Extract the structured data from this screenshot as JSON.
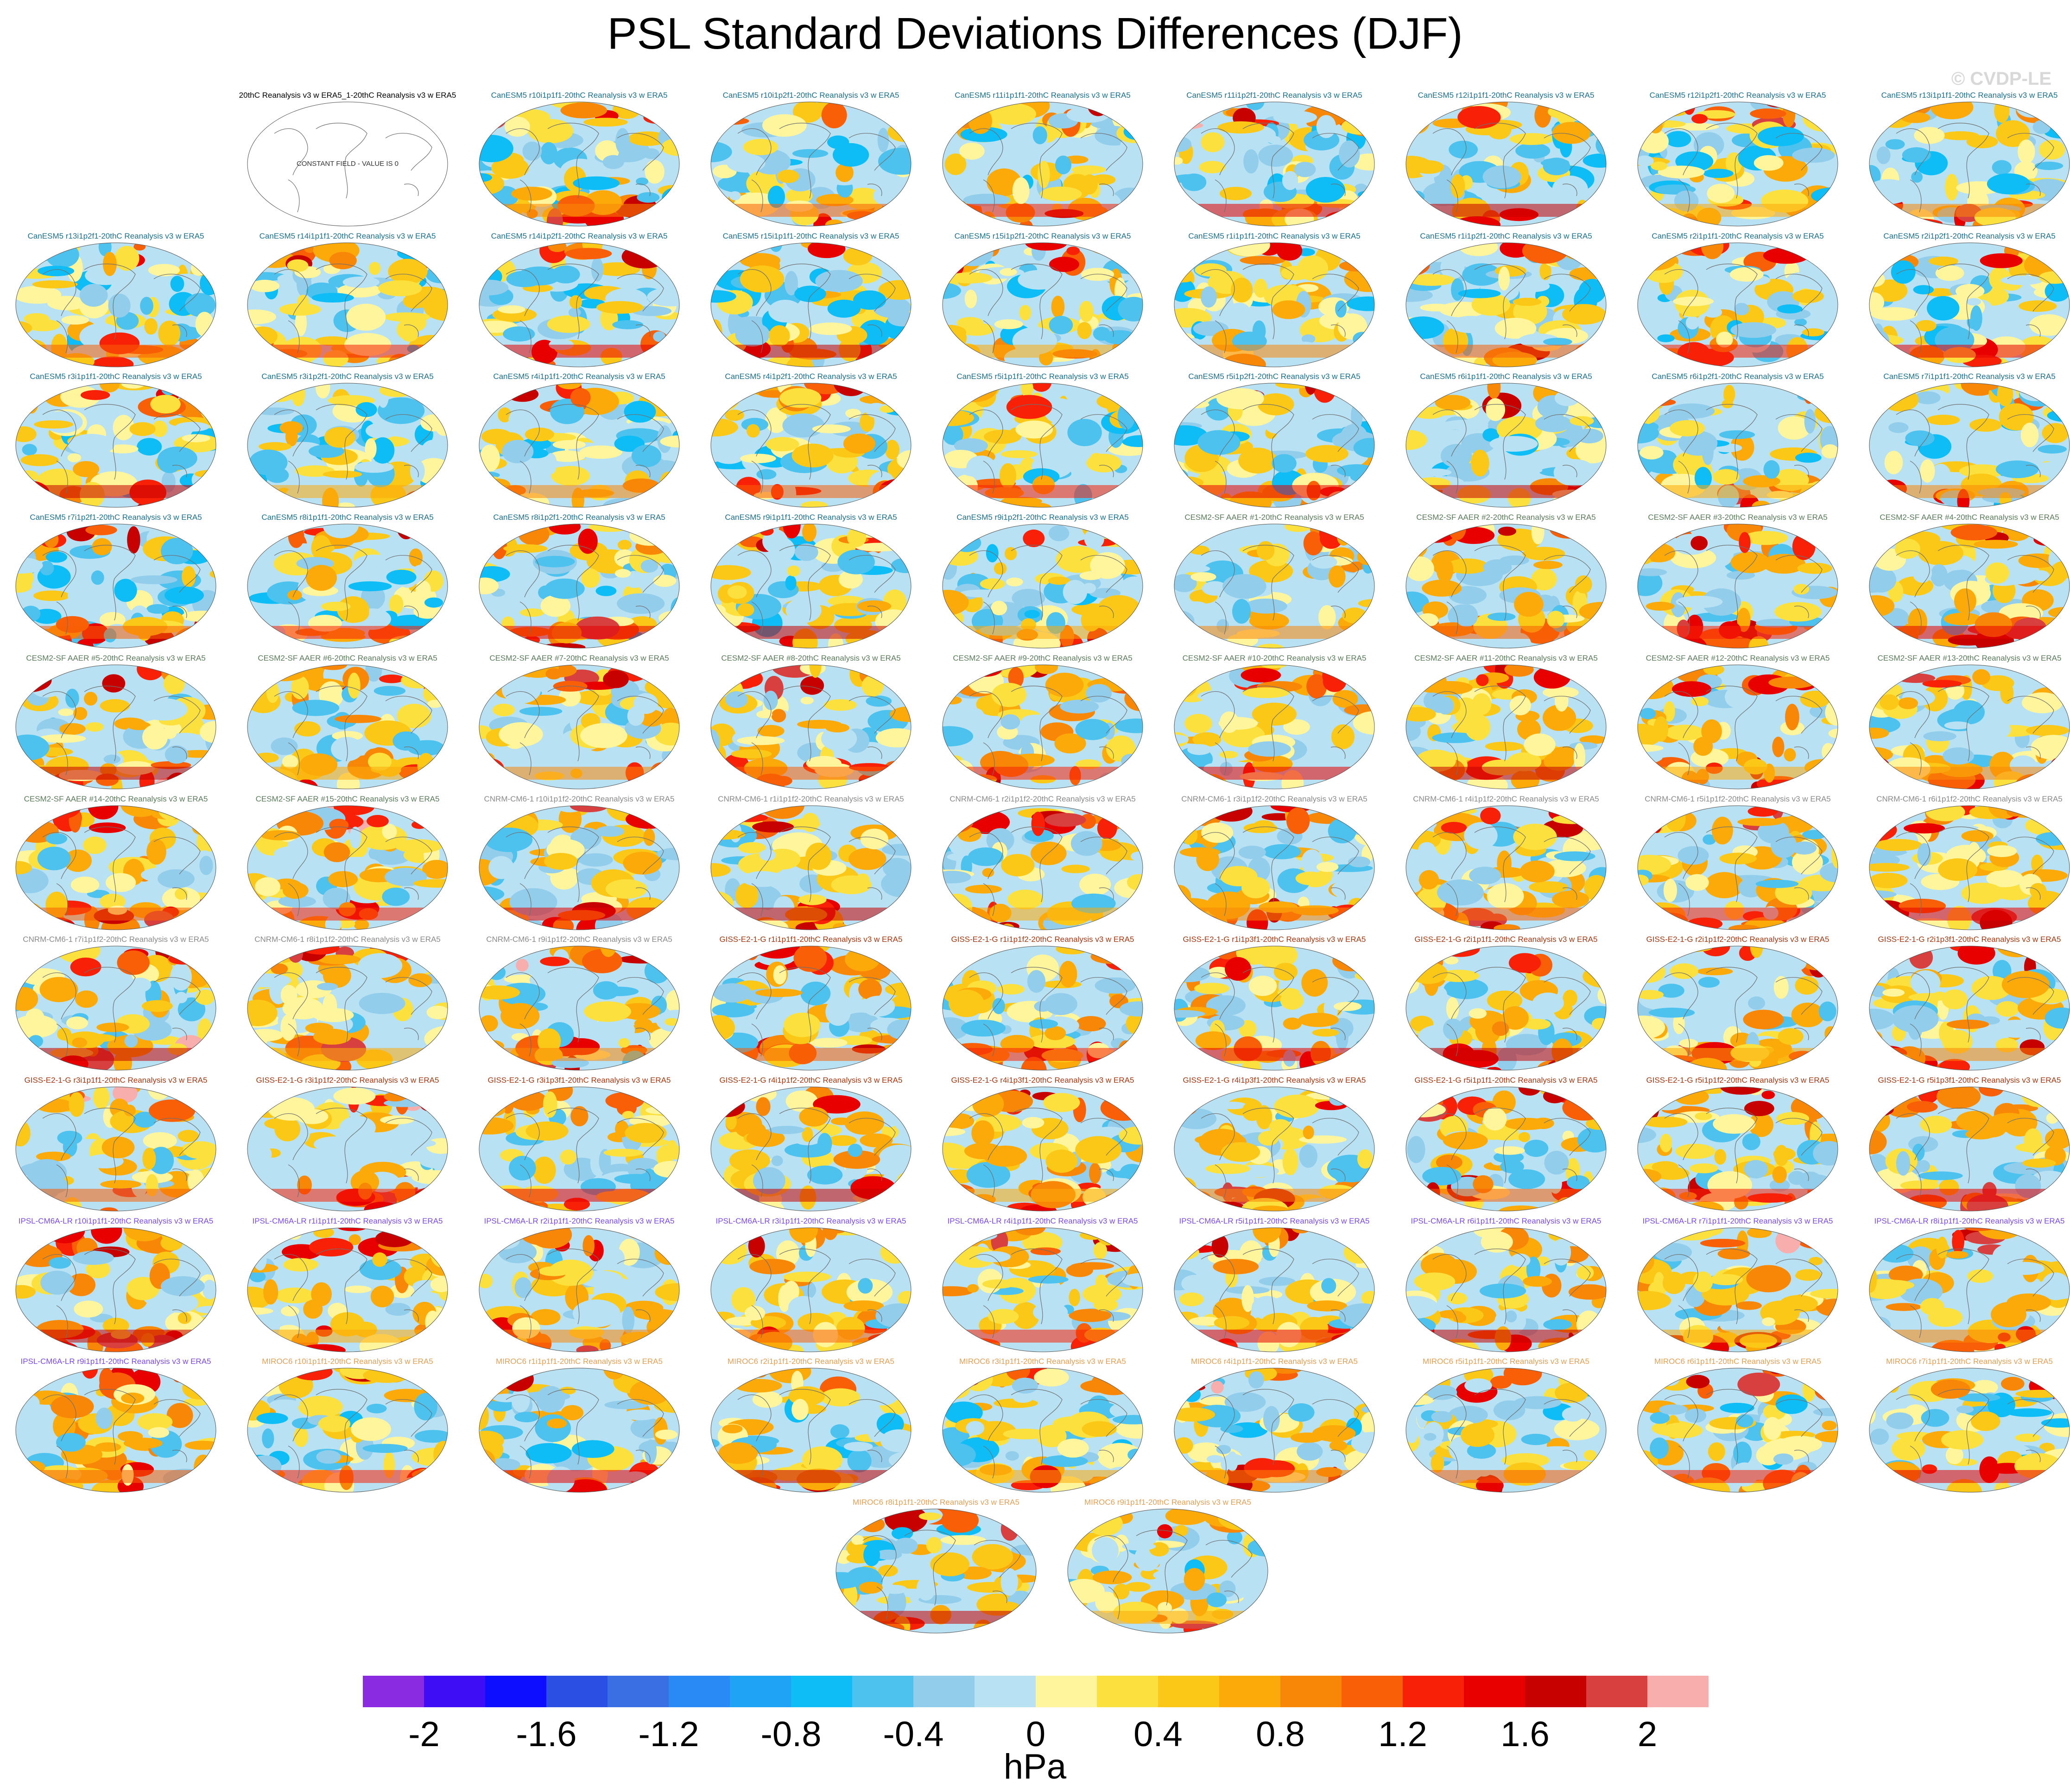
{
  "title": "PSL Standard Deviations Differences (DJF)",
  "watermark": "© CVDP-LE",
  "constant_field_note": "CONSTANT FIELD - VALUE IS 0",
  "units": "hPa",
  "colorbar": {
    "colors": [
      "#8a2be2",
      "#3e0df5",
      "#0d0dff",
      "#2b4fe3",
      "#3a6fe3",
      "#2a8af5",
      "#1fa3f5",
      "#0ebdf6",
      "#4dc2ef",
      "#93cdec",
      "#b8e2f3",
      "#fff59c",
      "#fce13e",
      "#fbc818",
      "#fbaa0a",
      "#f98707",
      "#f85f06",
      "#f82108",
      "#e80000",
      "#c70000",
      "#d84040",
      "#f9aeae"
    ],
    "tick_labels": [
      "-2",
      "-1.6",
      "-1.2",
      "-0.8",
      "-0.4",
      "0",
      "0.4",
      "0.8",
      "1.2",
      "1.6",
      "2"
    ]
  },
  "chart_data": {
    "type": "heatmap",
    "title": "PSL Standard Deviations Differences (DJF)",
    "colorbar_label": "hPa",
    "colorbar_range": [
      -2.2,
      2.2
    ],
    "colorbar_step": 0.2,
    "panels": [
      {
        "label": "20thC Reanalysis v3 w ERA5_1-20thC Reanalysis v3 w ERA5",
        "group": "obs"
      },
      {
        "label": "CanESM5 r10i1p1f1-20thC Reanalysis v3 w ERA5",
        "group": "canesm"
      },
      {
        "label": "CanESM5 r10i1p2f1-20thC Reanalysis v3 w ERA5",
        "group": "canesm"
      },
      {
        "label": "CanESM5 r11i1p1f1-20thC Reanalysis v3 w ERA5",
        "group": "canesm"
      },
      {
        "label": "CanESM5 r11i1p2f1-20thC Reanalysis v3 w ERA5",
        "group": "canesm"
      },
      {
        "label": "CanESM5 r12i1p1f1-20thC Reanalysis v3 w ERA5",
        "group": "canesm"
      },
      {
        "label": "CanESM5 r12i1p2f1-20thC Reanalysis v3 w ERA5",
        "group": "canesm"
      },
      {
        "label": "CanESM5 r13i1p1f1-20thC Reanalysis v3 w ERA5",
        "group": "canesm"
      },
      {
        "label": "CanESM5 r13i1p2f1-20thC Reanalysis v3 w ERA5",
        "group": "canesm"
      },
      {
        "label": "CanESM5 r14i1p1f1-20thC Reanalysis v3 w ERA5",
        "group": "canesm"
      },
      {
        "label": "CanESM5 r14i1p2f1-20thC Reanalysis v3 w ERA5",
        "group": "canesm"
      },
      {
        "label": "CanESM5 r15i1p1f1-20thC Reanalysis v3 w ERA5",
        "group": "canesm"
      },
      {
        "label": "CanESM5 r15i1p2f1-20thC Reanalysis v3 w ERA5",
        "group": "canesm"
      },
      {
        "label": "CanESM5 r1i1p1f1-20thC Reanalysis v3 w ERA5",
        "group": "canesm"
      },
      {
        "label": "CanESM5 r1i1p2f1-20thC Reanalysis v3 w ERA5",
        "group": "canesm"
      },
      {
        "label": "CanESM5 r2i1p1f1-20thC Reanalysis v3 w ERA5",
        "group": "canesm"
      },
      {
        "label": "CanESM5 r2i1p2f1-20thC Reanalysis v3 w ERA5",
        "group": "canesm"
      },
      {
        "label": "CanESM5 r3i1p1f1-20thC Reanalysis v3 w ERA5",
        "group": "canesm"
      },
      {
        "label": "CanESM5 r3i1p2f1-20thC Reanalysis v3 w ERA5",
        "group": "canesm"
      },
      {
        "label": "CanESM5 r4i1p1f1-20thC Reanalysis v3 w ERA5",
        "group": "canesm"
      },
      {
        "label": "CanESM5 r4i1p2f1-20thC Reanalysis v3 w ERA5",
        "group": "canesm"
      },
      {
        "label": "CanESM5 r5i1p1f1-20thC Reanalysis v3 w ERA5",
        "group": "canesm"
      },
      {
        "label": "CanESM5 r5i1p2f1-20thC Reanalysis v3 w ERA5",
        "group": "canesm"
      },
      {
        "label": "CanESM5 r6i1p1f1-20thC Reanalysis v3 w ERA5",
        "group": "canesm"
      },
      {
        "label": "CanESM5 r6i1p2f1-20thC Reanalysis v3 w ERA5",
        "group": "canesm"
      },
      {
        "label": "CanESM5 r7i1p1f1-20thC Reanalysis v3 w ERA5",
        "group": "canesm"
      },
      {
        "label": "CanESM5 r7i1p2f1-20thC Reanalysis v3 w ERA5",
        "group": "canesm"
      },
      {
        "label": "CanESM5 r8i1p1f1-20thC Reanalysis v3 w ERA5",
        "group": "canesm"
      },
      {
        "label": "CanESM5 r8i1p2f1-20thC Reanalysis v3 w ERA5",
        "group": "canesm"
      },
      {
        "label": "CanESM5 r9i1p1f1-20thC Reanalysis v3 w ERA5",
        "group": "canesm"
      },
      {
        "label": "CanESM5 r9i1p2f1-20thC Reanalysis v3 w ERA5",
        "group": "canesm"
      },
      {
        "label": "CESM2-SF AAER #1-20thC Reanalysis v3 w ERA5",
        "group": "cesm"
      },
      {
        "label": "CESM2-SF AAER #2-20thC Reanalysis v3 w ERA5",
        "group": "cesm"
      },
      {
        "label": "CESM2-SF AAER #3-20thC Reanalysis v3 w ERA5",
        "group": "cesm"
      },
      {
        "label": "CESM2-SF AAER #4-20thC Reanalysis v3 w ERA5",
        "group": "cesm"
      },
      {
        "label": "CESM2-SF AAER #5-20thC Reanalysis v3 w ERA5",
        "group": "cesm"
      },
      {
        "label": "CESM2-SF AAER #6-20thC Reanalysis v3 w ERA5",
        "group": "cesm"
      },
      {
        "label": "CESM2-SF AAER #7-20thC Reanalysis v3 w ERA5",
        "group": "cesm"
      },
      {
        "label": "CESM2-SF AAER #8-20thC Reanalysis v3 w ERA5",
        "group": "cesm"
      },
      {
        "label": "CESM2-SF AAER #9-20thC Reanalysis v3 w ERA5",
        "group": "cesm"
      },
      {
        "label": "CESM2-SF AAER #10-20thC Reanalysis v3 w ERA5",
        "group": "cesm"
      },
      {
        "label": "CESM2-SF AAER #11-20thC Reanalysis v3 w ERA5",
        "group": "cesm"
      },
      {
        "label": "CESM2-SF AAER #12-20thC Reanalysis v3 w ERA5",
        "group": "cesm"
      },
      {
        "label": "CESM2-SF AAER #13-20thC Reanalysis v3 w ERA5",
        "group": "cesm"
      },
      {
        "label": "CESM2-SF AAER #14-20thC Reanalysis v3 w ERA5",
        "group": "cesm"
      },
      {
        "label": "CESM2-SF AAER #15-20thC Reanalysis v3 w ERA5",
        "group": "cesm"
      },
      {
        "label": "CNRM-CM6-1 r10i1p1f2-20thC Reanalysis v3 w ERA5",
        "group": "cnrm"
      },
      {
        "label": "CNRM-CM6-1 r1i1p1f2-20thC Reanalysis v3 w ERA5",
        "group": "cnrm"
      },
      {
        "label": "CNRM-CM6-1 r2i1p1f2-20thC Reanalysis v3 w ERA5",
        "group": "cnrm"
      },
      {
        "label": "CNRM-CM6-1 r3i1p1f2-20thC Reanalysis v3 w ERA5",
        "group": "cnrm"
      },
      {
        "label": "CNRM-CM6-1 r4i1p1f2-20thC Reanalysis v3 w ERA5",
        "group": "cnrm"
      },
      {
        "label": "CNRM-CM6-1 r5i1p1f2-20thC Reanalysis v3 w ERA5",
        "group": "cnrm"
      },
      {
        "label": "CNRM-CM6-1 r6i1p1f2-20thC Reanalysis v3 w ERA5",
        "group": "cnrm"
      },
      {
        "label": "CNRM-CM6-1 r7i1p1f2-20thC Reanalysis v3 w ERA5",
        "group": "cnrm"
      },
      {
        "label": "CNRM-CM6-1 r8i1p1f2-20thC Reanalysis v3 w ERA5",
        "group": "cnrm"
      },
      {
        "label": "CNRM-CM6-1 r9i1p1f2-20thC Reanalysis v3 w ERA5",
        "group": "cnrm"
      },
      {
        "label": "GISS-E2-1-G r1i1p1f1-20thC Reanalysis v3 w ERA5",
        "group": "giss"
      },
      {
        "label": "GISS-E2-1-G r1i1p1f2-20thC Reanalysis v3 w ERA5",
        "group": "giss"
      },
      {
        "label": "GISS-E2-1-G r1i1p3f1-20thC Reanalysis v3 w ERA5",
        "group": "giss"
      },
      {
        "label": "GISS-E2-1-G r2i1p1f1-20thC Reanalysis v3 w ERA5",
        "group": "giss"
      },
      {
        "label": "GISS-E2-1-G r2i1p1f2-20thC Reanalysis v3 w ERA5",
        "group": "giss"
      },
      {
        "label": "GISS-E2-1-G r2i1p3f1-20thC Reanalysis v3 w ERA5",
        "group": "giss"
      },
      {
        "label": "GISS-E2-1-G r3i1p1f1-20thC Reanalysis v3 w ERA5",
        "group": "giss"
      },
      {
        "label": "GISS-E2-1-G r3i1p1f2-20thC Reanalysis v3 w ERA5",
        "group": "giss"
      },
      {
        "label": "GISS-E2-1-G r3i1p3f1-20thC Reanalysis v3 w ERA5",
        "group": "giss"
      },
      {
        "label": "GISS-E2-1-G r4i1p1f2-20thC Reanalysis v3 w ERA5",
        "group": "giss"
      },
      {
        "label": "GISS-E2-1-G r4i1p3f1-20thC Reanalysis v3 w ERA5",
        "group": "giss"
      },
      {
        "label": "GISS-E2-1-G r4i1p3f1-20thC Reanalysis v3 w ERA5",
        "group": "giss"
      },
      {
        "label": "GISS-E2-1-G r5i1p1f1-20thC Reanalysis v3 w ERA5",
        "group": "giss"
      },
      {
        "label": "GISS-E2-1-G r5i1p1f2-20thC Reanalysis v3 w ERA5",
        "group": "giss"
      },
      {
        "label": "GISS-E2-1-G r5i1p3f1-20thC Reanalysis v3 w ERA5",
        "group": "giss"
      },
      {
        "label": "IPSL-CM6A-LR r10i1p1f1-20thC Reanalysis v3 w ERA5",
        "group": "ipsl"
      },
      {
        "label": "IPSL-CM6A-LR r1i1p1f1-20thC Reanalysis v3 w ERA5",
        "group": "ipsl"
      },
      {
        "label": "IPSL-CM6A-LR r2i1p1f1-20thC Reanalysis v3 w ERA5",
        "group": "ipsl"
      },
      {
        "label": "IPSL-CM6A-LR r3i1p1f1-20thC Reanalysis v3 w ERA5",
        "group": "ipsl"
      },
      {
        "label": "IPSL-CM6A-LR r4i1p1f1-20thC Reanalysis v3 w ERA5",
        "group": "ipsl"
      },
      {
        "label": "IPSL-CM6A-LR r5i1p1f1-20thC Reanalysis v3 w ERA5",
        "group": "ipsl"
      },
      {
        "label": "IPSL-CM6A-LR r6i1p1f1-20thC Reanalysis v3 w ERA5",
        "group": "ipsl"
      },
      {
        "label": "IPSL-CM6A-LR r7i1p1f1-20thC Reanalysis v3 w ERA5",
        "group": "ipsl"
      },
      {
        "label": "IPSL-CM6A-LR r8i1p1f1-20thC Reanalysis v3 w ERA5",
        "group": "ipsl"
      },
      {
        "label": "IPSL-CM6A-LR r9i1p1f1-20thC Reanalysis v3 w ERA5",
        "group": "ipsl"
      },
      {
        "label": "MIROC6 r10i1p1f1-20thC Reanalysis v3 w ERA5",
        "group": "miroc"
      },
      {
        "label": "MIROC6 r1i1p1f1-20thC Reanalysis v3 w ERA5",
        "group": "miroc"
      },
      {
        "label": "MIROC6 r2i1p1f1-20thC Reanalysis v3 w ERA5",
        "group": "miroc"
      },
      {
        "label": "MIROC6 r3i1p1f1-20thC Reanalysis v3 w ERA5",
        "group": "miroc"
      },
      {
        "label": "MIROC6 r4i1p1f1-20thC Reanalysis v3 w ERA5",
        "group": "miroc"
      },
      {
        "label": "MIROC6 r5i1p1f1-20thC Reanalysis v3 w ERA5",
        "group": "miroc"
      },
      {
        "label": "MIROC6 r6i1p1f1-20thC Reanalysis v3 w ERA5",
        "group": "miroc"
      },
      {
        "label": "MIROC6 r7i1p1f1-20thC Reanalysis v3 w ERA5",
        "group": "miroc"
      },
      {
        "label": "MIROC6 r8i1p1f1-20thC Reanalysis v3 w ERA5",
        "group": "miroc"
      },
      {
        "label": "MIROC6 r9i1p1f1-20thC Reanalysis v3 w ERA5",
        "group": "miroc"
      }
    ],
    "group_label_colors": {
      "obs": "#000000",
      "canesm": "#1b6f8a",
      "cesm": "#5a7a5a",
      "cnrm": "#8a8a8a",
      "giss": "#a2370f",
      "ipsl": "#7a4ae0",
      "miroc": "#e0a055"
    }
  }
}
